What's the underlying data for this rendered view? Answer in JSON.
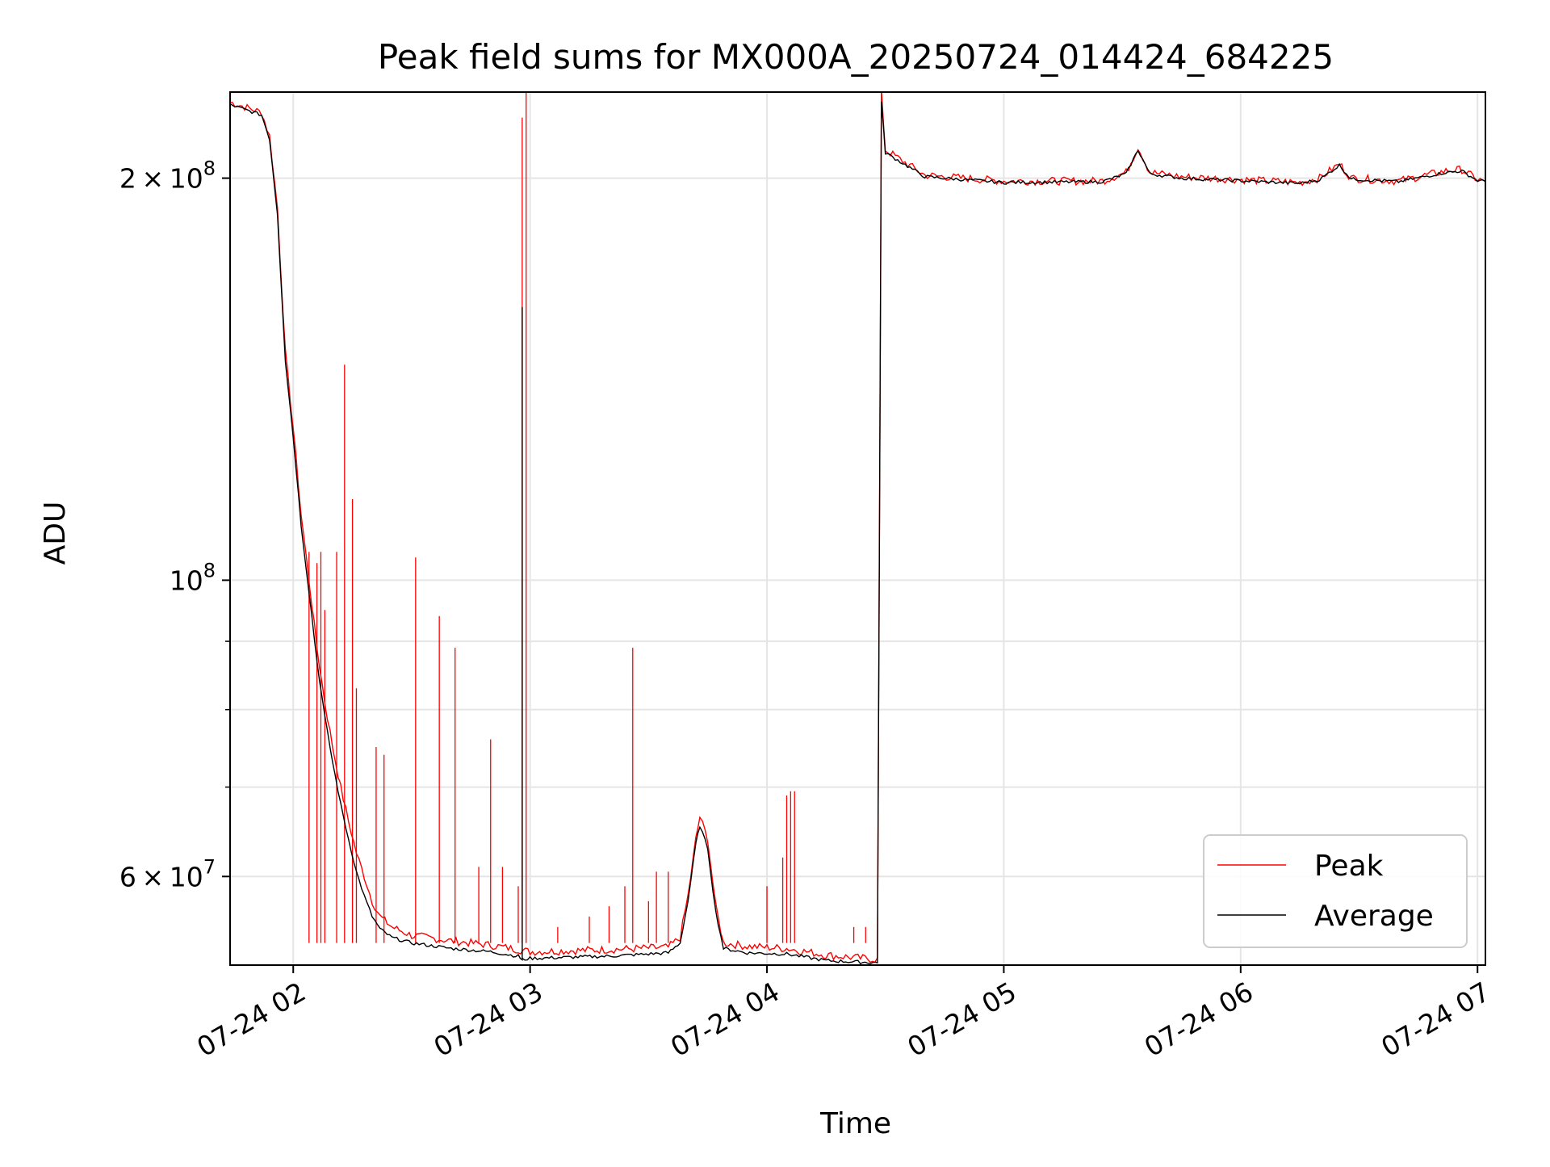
{
  "chart_data": {
    "type": "line",
    "title": "Peak field sums for MX000A_20250724_014424_684225",
    "xlabel": "Time",
    "ylabel": "ADU",
    "y_scale": "log",
    "grid": true,
    "legend_position": "bottom-right",
    "xlim": [
      "2025-07-24 01:44",
      "2025-07-24 07:02"
    ],
    "ylim": [
      51500000,
      232000000
    ],
    "x_ticks": [
      {
        "value": "2025-07-24 02:00",
        "label": "07-24 02"
      },
      {
        "value": "2025-07-24 03:00",
        "label": "07-24 03"
      },
      {
        "value": "2025-07-24 04:00",
        "label": "07-24 04"
      },
      {
        "value": "2025-07-24 05:00",
        "label": "07-24 05"
      },
      {
        "value": "2025-07-24 06:00",
        "label": "07-24 06"
      },
      {
        "value": "2025-07-24 07:00",
        "label": "07-24 07"
      }
    ],
    "y_major_ticks": [
      {
        "value": 60000000,
        "label_mantissa": "6",
        "label_times": "×",
        "label_base": "10",
        "label_exp": "7"
      },
      {
        "value": 100000000,
        "label_mantissa": "",
        "label_times": "",
        "label_base": "10",
        "label_exp": "8"
      },
      {
        "value": 200000000,
        "label_mantissa": "2",
        "label_times": "×",
        "label_base": "10",
        "label_exp": "8"
      }
    ],
    "y_minor_ticks": [
      70000000,
      80000000,
      90000000
    ],
    "series": [
      {
        "name": "Peak",
        "color": "#ff0000",
        "points": [
          [
            "2025-07-24 01:44",
            228000000
          ],
          [
            "2025-07-24 01:52",
            224000000
          ],
          [
            "2025-07-24 01:54",
            215000000
          ],
          [
            "2025-07-24 01:56",
            190000000
          ],
          [
            "2025-07-24 01:58",
            148000000
          ],
          [
            "2025-07-24 02:00",
            130000000
          ],
          [
            "2025-07-24 02:02",
            112000000
          ],
          [
            "2025-07-24 02:04",
            100000000
          ],
          [
            "2025-07-24 02:06",
            89000000
          ],
          [
            "2025-07-24 02:08",
            81000000
          ],
          [
            "2025-07-24 02:10",
            75000000
          ],
          [
            "2025-07-24 02:12",
            70000000
          ],
          [
            "2025-07-24 02:14",
            66000000
          ],
          [
            "2025-07-24 02:16",
            62500000
          ],
          [
            "2025-07-24 02:18",
            60000000
          ],
          [
            "2025-07-24 02:20",
            57500000
          ],
          [
            "2025-07-24 02:22",
            56000000
          ],
          [
            "2025-07-24 02:25",
            55000000
          ],
          [
            "2025-07-24 02:30",
            54200000
          ],
          [
            "2025-07-24 02:40",
            53700000
          ],
          [
            "2025-07-24 02:50",
            53300000
          ],
          [
            "2025-07-24 02:57",
            52900000
          ],
          [
            "2025-07-24 03:00",
            52700000
          ],
          [
            "2025-07-24 03:20",
            52900000
          ],
          [
            "2025-07-24 03:35",
            53100000
          ],
          [
            "2025-07-24 03:38",
            54000000
          ],
          [
            "2025-07-24 03:40",
            58000000
          ],
          [
            "2025-07-24 03:42",
            64000000
          ],
          [
            "2025-07-24 03:43",
            66500000
          ],
          [
            "2025-07-24 03:45",
            64000000
          ],
          [
            "2025-07-24 03:47",
            57000000
          ],
          [
            "2025-07-24 03:49",
            53500000
          ],
          [
            "2025-07-24 03:55",
            53200000
          ],
          [
            "2025-07-24 04:05",
            53000000
          ],
          [
            "2025-07-24 04:15",
            52400000
          ],
          [
            "2025-07-24 04:28",
            52000000
          ],
          [
            "2025-07-24 04:29",
            232000000
          ],
          [
            "2025-07-24 04:30",
            210000000
          ],
          [
            "2025-07-24 04:40",
            201000000
          ],
          [
            "2025-07-24 05:00",
            199000000
          ],
          [
            "2025-07-24 05:25",
            199000000
          ],
          [
            "2025-07-24 05:31",
            202000000
          ],
          [
            "2025-07-24 05:34",
            211000000
          ],
          [
            "2025-07-24 05:37",
            202000000
          ],
          [
            "2025-07-24 05:45",
            200500000
          ],
          [
            "2025-07-24 06:15",
            198500000
          ],
          [
            "2025-07-24 06:20",
            200000000
          ],
          [
            "2025-07-24 06:25",
            205000000
          ],
          [
            "2025-07-24 06:28",
            200000000
          ],
          [
            "2025-07-24 06:40",
            199000000
          ],
          [
            "2025-07-24 06:52",
            202500000
          ],
          [
            "2025-07-24 06:56",
            203000000
          ],
          [
            "2025-07-24 07:00",
            199500000
          ],
          [
            "2025-07-24 07:02",
            199000000
          ]
        ],
        "spikes": [
          [
            "2025-07-24 02:04",
            105000000
          ],
          [
            "2025-07-24 02:06",
            103000000
          ],
          [
            "2025-07-24 02:07",
            105000000
          ],
          [
            "2025-07-24 02:08",
            95000000
          ],
          [
            "2025-07-24 02:11",
            105000000
          ],
          [
            "2025-07-24 02:13",
            145000000
          ],
          [
            "2025-07-24 02:15",
            115000000
          ],
          [
            "2025-07-24 02:16",
            83000000
          ],
          [
            "2025-07-24 02:21",
            75000000
          ],
          [
            "2025-07-24 02:23",
            74000000
          ],
          [
            "2025-07-24 02:31",
            104000000
          ],
          [
            "2025-07-24 02:37",
            94000000
          ],
          [
            "2025-07-24 02:41",
            89000000
          ],
          [
            "2025-07-24 02:47",
            61000000
          ],
          [
            "2025-07-24 02:50",
            76000000
          ],
          [
            "2025-07-24 02:53",
            61000000
          ],
          [
            "2025-07-24 02:57",
            59000000
          ],
          [
            "2025-07-24 02:58",
            222000000
          ],
          [
            "2025-07-24 02:59",
            232000000
          ],
          [
            "2025-07-24 03:07",
            55000000
          ],
          [
            "2025-07-24 03:15",
            56000000
          ],
          [
            "2025-07-24 03:20",
            57000000
          ],
          [
            "2025-07-24 03:24",
            59000000
          ],
          [
            "2025-07-24 03:26",
            89000000
          ],
          [
            "2025-07-24 03:30",
            57500000
          ],
          [
            "2025-07-24 03:32",
            60500000
          ],
          [
            "2025-07-24 03:35",
            60500000
          ],
          [
            "2025-07-24 04:00",
            59000000
          ],
          [
            "2025-07-24 04:04",
            62000000
          ],
          [
            "2025-07-24 04:05",
            69000000
          ],
          [
            "2025-07-24 04:06",
            69500000
          ],
          [
            "2025-07-24 04:07",
            69500000
          ],
          [
            "2025-07-24 04:22",
            55000000
          ],
          [
            "2025-07-24 04:25",
            55000000
          ]
        ]
      },
      {
        "name": "Average",
        "color": "#000000",
        "points": [
          [
            "2025-07-24 01:44",
            227000000
          ],
          [
            "2025-07-24 01:52",
            223000000
          ],
          [
            "2025-07-24 01:54",
            214000000
          ],
          [
            "2025-07-24 01:56",
            188000000
          ],
          [
            "2025-07-24 01:58",
            146000000
          ],
          [
            "2025-07-24 02:00",
            128000000
          ],
          [
            "2025-07-24 02:02",
            110000000
          ],
          [
            "2025-07-24 02:04",
            98000000
          ],
          [
            "2025-07-24 02:06",
            87000000
          ],
          [
            "2025-07-24 02:08",
            79000000
          ],
          [
            "2025-07-24 02:10",
            73000000
          ],
          [
            "2025-07-24 02:12",
            68000000
          ],
          [
            "2025-07-24 02:14",
            64000000
          ],
          [
            "2025-07-24 02:16",
            60500000
          ],
          [
            "2025-07-24 02:18",
            58000000
          ],
          [
            "2025-07-24 02:20",
            56000000
          ],
          [
            "2025-07-24 02:22",
            54800000
          ],
          [
            "2025-07-24 02:25",
            54000000
          ],
          [
            "2025-07-24 02:30",
            53500000
          ],
          [
            "2025-07-24 02:40",
            53000000
          ],
          [
            "2025-07-24 02:50",
            52700000
          ],
          [
            "2025-07-24 02:57",
            52300000
          ],
          [
            "2025-07-24 02:58",
            52000000
          ],
          [
            "2025-07-24 02:58",
            160000000
          ],
          [
            "2025-07-24 02:58",
            52000000
          ],
          [
            "2025-07-24 03:00",
            52100000
          ],
          [
            "2025-07-24 03:20",
            52300000
          ],
          [
            "2025-07-24 03:35",
            52600000
          ],
          [
            "2025-07-24 03:38",
            53500000
          ],
          [
            "2025-07-24 03:40",
            57500000
          ],
          [
            "2025-07-24 03:42",
            63500000
          ],
          [
            "2025-07-24 03:43",
            65500000
          ],
          [
            "2025-07-24 03:45",
            63000000
          ],
          [
            "2025-07-24 03:47",
            56500000
          ],
          [
            "2025-07-24 03:49",
            53000000
          ],
          [
            "2025-07-24 03:55",
            52600000
          ],
          [
            "2025-07-24 04:05",
            52500000
          ],
          [
            "2025-07-24 04:15",
            51900000
          ],
          [
            "2025-07-24 04:28",
            51700000
          ],
          [
            "2025-07-24 04:29",
            228000000
          ],
          [
            "2025-07-24 04:30",
            209000000
          ],
          [
            "2025-07-24 04:40",
            200500000
          ],
          [
            "2025-07-24 05:00",
            198500000
          ],
          [
            "2025-07-24 05:25",
            198800000
          ],
          [
            "2025-07-24 05:31",
            201500000
          ],
          [
            "2025-07-24 05:34",
            210000000
          ],
          [
            "2025-07-24 05:37",
            201500000
          ],
          [
            "2025-07-24 05:45",
            200000000
          ],
          [
            "2025-07-24 06:15",
            198200000
          ],
          [
            "2025-07-24 06:20",
            199500000
          ],
          [
            "2025-07-24 06:25",
            204500000
          ],
          [
            "2025-07-24 06:28",
            199700000
          ],
          [
            "2025-07-24 06:40",
            198800000
          ],
          [
            "2025-07-24 06:52",
            202000000
          ],
          [
            "2025-07-24 06:56",
            202500000
          ],
          [
            "2025-07-24 07:00",
            199200000
          ],
          [
            "2025-07-24 07:02",
            198800000
          ]
        ]
      }
    ]
  }
}
